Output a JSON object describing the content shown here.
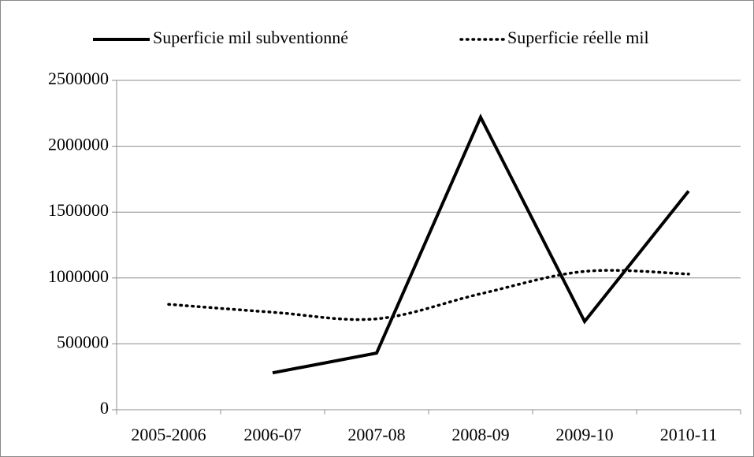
{
  "chart_data": {
    "type": "line",
    "categories": [
      "2005-2006",
      "2006-07",
      "2007-08",
      "2008-09",
      "2009-10",
      "2010-11"
    ],
    "series": [
      {
        "name": "Superficie mil subventionné",
        "color": "#000000",
        "style": "solid",
        "smooth": false,
        "values": [
          null,
          280000,
          430000,
          2220000,
          670000,
          1660000
        ]
      },
      {
        "name": "Superficie réelle mil",
        "color": "#000000",
        "style": "dotted",
        "smooth": true,
        "values": [
          800000,
          740000,
          690000,
          880000,
          1050000,
          1030000
        ]
      }
    ],
    "ylim": [
      0,
      2500000
    ],
    "yticks": [
      0,
      500000,
      1000000,
      1500000,
      2000000,
      2500000
    ],
    "grid": true,
    "legend": "top"
  }
}
